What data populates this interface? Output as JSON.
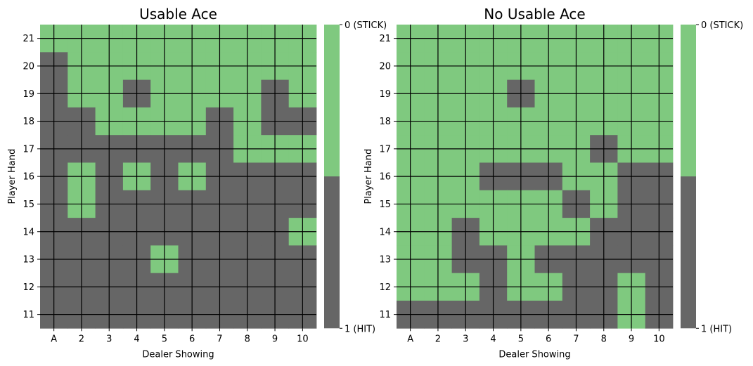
{
  "colors": {
    "stick": "#7fc97f",
    "hit": "#666666",
    "grid": "#000000"
  },
  "chart_data": [
    {
      "type": "heatmap",
      "title": "Usable Ace",
      "xlabel": "Dealer Showing",
      "ylabel": "Player Hand",
      "x_categories": [
        "A",
        "2",
        "3",
        "4",
        "5",
        "6",
        "7",
        "8",
        "9",
        "10"
      ],
      "y_categories": [
        "21",
        "20",
        "19",
        "18",
        "17",
        "16",
        "15",
        "14",
        "13",
        "12",
        "11"
      ],
      "colorbar": {
        "top_label": "0 (STICK)",
        "bottom_label": "1 (HIT)",
        "range": [
          0,
          1
        ]
      },
      "grid": true,
      "values": [
        [
          0,
          0,
          0,
          0,
          0,
          0,
          0,
          0,
          0,
          0
        ],
        [
          1,
          0,
          0,
          0,
          0,
          0,
          0,
          0,
          0,
          0
        ],
        [
          1,
          0,
          0,
          1,
          0,
          0,
          0,
          0,
          1,
          0
        ],
        [
          1,
          1,
          0,
          0,
          0,
          0,
          1,
          0,
          1,
          1
        ],
        [
          1,
          1,
          1,
          1,
          1,
          1,
          1,
          0,
          0,
          0
        ],
        [
          1,
          0,
          1,
          0,
          1,
          0,
          1,
          1,
          1,
          1
        ],
        [
          1,
          0,
          1,
          1,
          1,
          1,
          1,
          1,
          1,
          1
        ],
        [
          1,
          1,
          1,
          1,
          1,
          1,
          1,
          1,
          1,
          0
        ],
        [
          1,
          1,
          1,
          1,
          0,
          1,
          1,
          1,
          1,
          1
        ],
        [
          1,
          1,
          1,
          1,
          1,
          1,
          1,
          1,
          1,
          1
        ],
        [
          1,
          1,
          1,
          1,
          1,
          1,
          1,
          1,
          1,
          1
        ]
      ]
    },
    {
      "type": "heatmap",
      "title": "No Usable Ace",
      "xlabel": "Dealer Showing",
      "ylabel": "Player Hand",
      "x_categories": [
        "A",
        "2",
        "3",
        "4",
        "5",
        "6",
        "7",
        "8",
        "9",
        "10"
      ],
      "y_categories": [
        "21",
        "20",
        "19",
        "18",
        "17",
        "16",
        "15",
        "14",
        "13",
        "12",
        "11"
      ],
      "colorbar": {
        "top_label": "0 (STICK)",
        "bottom_label": "1 (HIT)",
        "range": [
          0,
          1
        ]
      },
      "grid": true,
      "values": [
        [
          0,
          0,
          0,
          0,
          0,
          0,
          0,
          0,
          0,
          0
        ],
        [
          0,
          0,
          0,
          0,
          0,
          0,
          0,
          0,
          0,
          0
        ],
        [
          0,
          0,
          0,
          0,
          1,
          0,
          0,
          0,
          0,
          0
        ],
        [
          0,
          0,
          0,
          0,
          0,
          0,
          0,
          0,
          0,
          0
        ],
        [
          0,
          0,
          0,
          0,
          0,
          0,
          0,
          1,
          0,
          0
        ],
        [
          0,
          0,
          0,
          1,
          1,
          1,
          0,
          0,
          1,
          1
        ],
        [
          0,
          0,
          0,
          0,
          0,
          0,
          1,
          0,
          1,
          1
        ],
        [
          0,
          0,
          1,
          0,
          0,
          0,
          0,
          1,
          1,
          1
        ],
        [
          0,
          0,
          1,
          1,
          0,
          1,
          1,
          1,
          1,
          1
        ],
        [
          0,
          0,
          0,
          1,
          0,
          0,
          1,
          1,
          0,
          1
        ],
        [
          1,
          1,
          1,
          1,
          1,
          1,
          1,
          1,
          0,
          1
        ]
      ]
    }
  ]
}
